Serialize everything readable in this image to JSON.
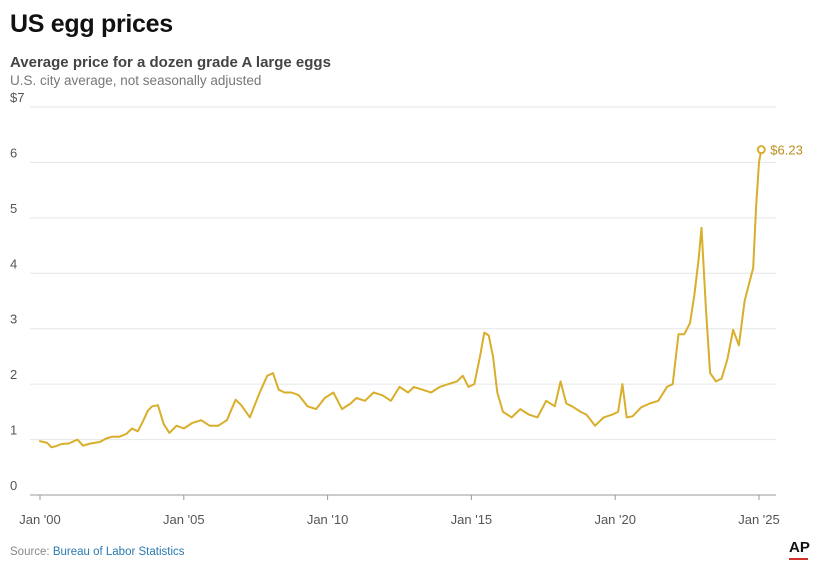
{
  "header": {
    "title": "US egg prices",
    "subtitle": "Average price for a dozen grade A large eggs",
    "note": "U.S. city average, not seasonally adjusted"
  },
  "footer": {
    "source_label": "Source: ",
    "source_name": "Bureau of Labor Statistics",
    "logo_text": "AP"
  },
  "colors": {
    "line": "#d9ae2a",
    "label": "#b8901e",
    "grid": "#e6e6e6",
    "axis": "#999999"
  },
  "chart_data": {
    "type": "line",
    "title": "US egg prices",
    "subtitle": "Average price for a dozen grade A large eggs",
    "xlabel": "",
    "ylabel": "",
    "ylim": [
      0,
      7
    ],
    "xlim": [
      2000.0,
      2025.1
    ],
    "yticks": [
      0,
      1,
      2,
      3,
      4,
      5,
      6,
      7
    ],
    "ytick_labels": [
      "0",
      "1",
      "2",
      "3",
      "4",
      "5",
      "6",
      "$7"
    ],
    "xticks": [
      2000,
      2005,
      2010,
      2015,
      2020,
      2025
    ],
    "xtick_labels": [
      "Jan '00",
      "Jan '05",
      "Jan '10",
      "Jan '15",
      "Jan '20",
      "Jan '25"
    ],
    "grid": true,
    "series": [
      {
        "x": [
          2000.0,
          2000.25,
          2000.4,
          2000.55,
          2000.75,
          2001.0,
          2001.3,
          2001.5,
          2001.75,
          2001.9,
          2002.1,
          2002.3,
          2002.5,
          2002.75,
          2003.0,
          2003.2,
          2003.4,
          2003.6,
          2003.75,
          2003.9,
          2004.1,
          2004.3,
          2004.5,
          2004.75,
          2005.0,
          2005.3,
          2005.6,
          2005.9,
          2006.2,
          2006.5,
          2006.8,
          2007.0,
          2007.3,
          2007.6,
          2007.9,
          2008.1,
          2008.3,
          2008.5,
          2008.75,
          2009.0,
          2009.3,
          2009.6,
          2009.9,
          2010.2,
          2010.5,
          2010.8,
          2011.0,
          2011.3,
          2011.6,
          2011.9,
          2012.2,
          2012.5,
          2012.8,
          2013.0,
          2013.3,
          2013.6,
          2013.9,
          2014.2,
          2014.5,
          2014.7,
          2014.9,
          2015.1,
          2015.3,
          2015.45,
          2015.6,
          2015.75,
          2015.9,
          2016.1,
          2016.4,
          2016.7,
          2017.0,
          2017.3,
          2017.6,
          2017.9,
          2018.1,
          2018.3,
          2018.5,
          2018.8,
          2019.0,
          2019.3,
          2019.6,
          2019.9,
          2020.1,
          2020.25,
          2020.4,
          2020.6,
          2020.9,
          2021.2,
          2021.5,
          2021.8,
          2022.0,
          2022.2,
          2022.4,
          2022.6,
          2022.75,
          2022.9,
          2023.0,
          2023.15,
          2023.3,
          2023.5,
          2023.7,
          2023.9,
          2024.1,
          2024.3,
          2024.5,
          2024.65,
          2024.8,
          2024.9,
          2025.0,
          2025.08
        ],
        "values": [
          0.97,
          0.94,
          0.86,
          0.88,
          0.92,
          0.93,
          1.0,
          0.89,
          0.93,
          0.94,
          0.96,
          1.02,
          1.05,
          1.05,
          1.1,
          1.2,
          1.15,
          1.35,
          1.52,
          1.6,
          1.62,
          1.28,
          1.12,
          1.25,
          1.2,
          1.3,
          1.35,
          1.25,
          1.25,
          1.35,
          1.72,
          1.62,
          1.4,
          1.8,
          2.15,
          2.2,
          1.9,
          1.85,
          1.85,
          1.8,
          1.6,
          1.55,
          1.75,
          1.85,
          1.55,
          1.65,
          1.75,
          1.7,
          1.85,
          1.8,
          1.7,
          1.95,
          1.85,
          1.95,
          1.9,
          1.85,
          1.95,
          2.0,
          2.05,
          2.15,
          1.95,
          2.0,
          2.5,
          2.93,
          2.88,
          2.5,
          1.85,
          1.5,
          1.4,
          1.55,
          1.45,
          1.4,
          1.7,
          1.6,
          2.05,
          1.65,
          1.6,
          1.5,
          1.45,
          1.25,
          1.4,
          1.45,
          1.5,
          2.0,
          1.4,
          1.42,
          1.58,
          1.65,
          1.7,
          1.95,
          2.0,
          2.9,
          2.9,
          3.1,
          3.6,
          4.25,
          4.82,
          3.4,
          2.2,
          2.05,
          2.1,
          2.45,
          2.98,
          2.7,
          3.5,
          3.8,
          4.1,
          5.2,
          6.0,
          6.23
        ]
      }
    ],
    "annotations": [
      {
        "x": 2025.08,
        "y": 6.23,
        "text": "$6.23"
      }
    ]
  }
}
